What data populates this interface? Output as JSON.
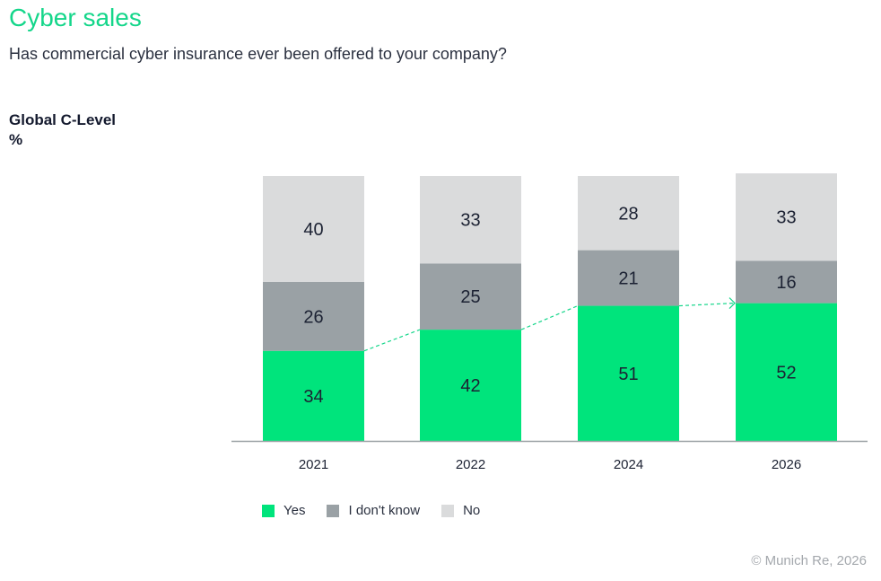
{
  "title": "Cyber sales",
  "subtitle": "Has commercial cyber insurance ever been offered to your company?",
  "ylabel_line1": "Global C-Level",
  "ylabel_line2": "%",
  "credit": "© Munich Re, 2026",
  "chart_data": {
    "type": "bar",
    "stacked": true,
    "categories": [
      "2021",
      "2022",
      "2024",
      "2026"
    ],
    "series": [
      {
        "name": "Yes",
        "color": "#00e47c",
        "values": [
          34,
          42,
          51,
          52
        ]
      },
      {
        "name": "I don't know",
        "color": "#9aa1a5",
        "values": [
          26,
          25,
          21,
          16
        ]
      },
      {
        "name": "No",
        "color": "#dadbdc",
        "values": [
          40,
          33,
          28,
          33
        ]
      }
    ],
    "ylim": [
      0,
      100
    ],
    "grid": false,
    "legend_position": "bottom-left",
    "trend_line": {
      "series": "Yes",
      "style": "dashed-arrow",
      "color": "#14d68a"
    }
  }
}
